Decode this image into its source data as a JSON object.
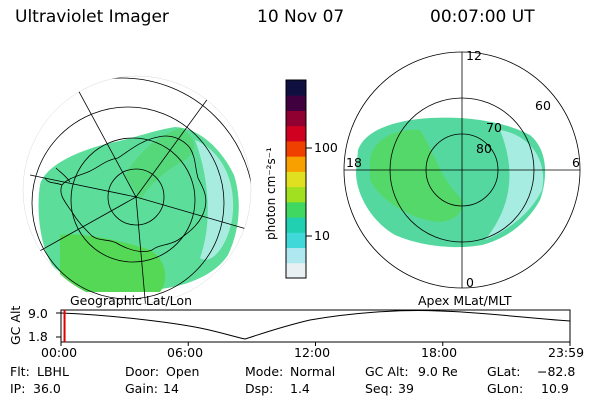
{
  "header": {
    "title": "Ultraviolet Imager",
    "date": "10 Nov 07",
    "time": "00:07:00 UT"
  },
  "left_panel": {
    "label": "Geographic Lat/Lon"
  },
  "right_panel": {
    "label": "Apex MLat/MLT",
    "lat_labels": [
      "80",
      "70",
      "60"
    ],
    "mlt_labels": {
      "top": "12",
      "left": "18",
      "right": "6",
      "bottom": "0"
    }
  },
  "colorbar": {
    "unit": "photon cm⁻²s⁻¹",
    "ticks": [
      "100",
      "10"
    ],
    "colors": [
      "#e8f0f4",
      "#b0e8f0",
      "#40d8d8",
      "#20d0b0",
      "#40d860",
      "#a0e020",
      "#e0e020",
      "#f8a000",
      "#f04000",
      "#d00020",
      "#900030",
      "#400040",
      "#101040"
    ]
  },
  "timeline": {
    "ylabel": "GC Alt",
    "yticks": [
      "9.0",
      "1.8"
    ],
    "xticks": [
      "00:00",
      "06:00",
      "12:00",
      "18:00",
      "23:59"
    ],
    "marker_fraction": 0.005
  },
  "footer": {
    "flt_label": "Flt:",
    "flt_value": "LBHL",
    "ip_label": "IP:",
    "ip_value": "36.0",
    "door_label": "Door:",
    "door_value": "Open",
    "gain_label": "Gain:",
    "gain_value": "14",
    "mode_label": "Mode:",
    "mode_value": "Normal",
    "dsp_label": "Dsp:",
    "dsp_value": "1.4",
    "gcalt_label": "GC Alt:",
    "gcalt_value": "9.0 Re",
    "seq_label": "Seq:",
    "seq_value": "39",
    "glat_label": "GLat:",
    "glat_value": "−82.8",
    "glon_label": "GLon:",
    "glon_value": "10.9"
  }
}
